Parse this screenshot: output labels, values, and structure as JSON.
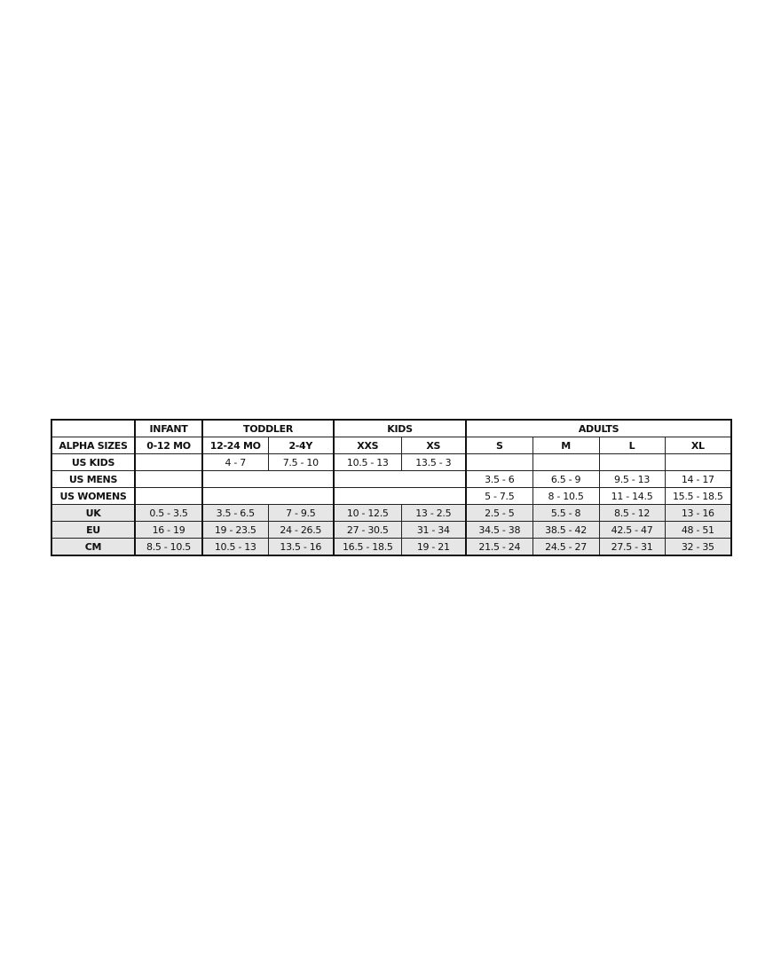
{
  "table": {
    "group_header": {
      "label": "",
      "groups": [
        {
          "text": "INFANT",
          "span": 1
        },
        {
          "text": "TODDLER",
          "span": 2
        },
        {
          "text": "KIDS",
          "span": 2
        },
        {
          "text": "ADULTS",
          "span": 4
        }
      ]
    },
    "rows": [
      {
        "label": "ALPHA SIZES",
        "header": true,
        "grey": false,
        "cells": [
          {
            "text": "0-12 MO"
          },
          {
            "text": "12-24 MO"
          },
          {
            "text": "2-4Y"
          },
          {
            "text": "XXS"
          },
          {
            "text": "XS"
          },
          {
            "text": "S"
          },
          {
            "text": "M"
          },
          {
            "text": "L"
          },
          {
            "text": "XL"
          }
        ]
      },
      {
        "label": "US KIDS",
        "grey": false,
        "cells": [
          {
            "text": ""
          },
          {
            "text": "4 - 7"
          },
          {
            "text": "7.5 - 10"
          },
          {
            "text": "10.5 - 13"
          },
          {
            "text": "13.5 - 3"
          },
          {
            "text": ""
          },
          {
            "text": ""
          },
          {
            "text": ""
          },
          {
            "text": ""
          }
        ]
      },
      {
        "label": "US MENS",
        "grey": false,
        "cells": [
          {
            "text": ""
          },
          {
            "text": "",
            "span": 2
          },
          {
            "text": "",
            "span": 2
          },
          {
            "text": "3.5 - 6"
          },
          {
            "text": "6.5 - 9"
          },
          {
            "text": "9.5 - 13"
          },
          {
            "text": "14 - 17"
          }
        ]
      },
      {
        "label": "US WOMENS",
        "grey": false,
        "cells": [
          {
            "text": ""
          },
          {
            "text": "",
            "span": 2
          },
          {
            "text": "",
            "span": 2
          },
          {
            "text": "5 - 7.5"
          },
          {
            "text": "8 - 10.5"
          },
          {
            "text": "11 - 14.5"
          },
          {
            "text": "15.5 - 18.5"
          }
        ]
      },
      {
        "label": "UK",
        "grey": true,
        "cells": [
          {
            "text": "0.5 - 3.5"
          },
          {
            "text": "3.5 - 6.5"
          },
          {
            "text": "7 - 9.5"
          },
          {
            "text": "10 - 12.5"
          },
          {
            "text": "13 - 2.5"
          },
          {
            "text": "2.5 - 5"
          },
          {
            "text": "5.5 - 8"
          },
          {
            "text": "8.5 - 12"
          },
          {
            "text": "13 - 16"
          }
        ]
      },
      {
        "label": "EU",
        "grey": true,
        "cells": [
          {
            "text": "16 - 19"
          },
          {
            "text": "19 - 23.5"
          },
          {
            "text": "24 - 26.5"
          },
          {
            "text": "27 - 30.5"
          },
          {
            "text": "31 - 34"
          },
          {
            "text": "34.5 - 38"
          },
          {
            "text": "38.5 - 42"
          },
          {
            "text": "42.5 - 47"
          },
          {
            "text": "48 - 51"
          }
        ]
      },
      {
        "label": "CM",
        "grey": true,
        "cells": [
          {
            "text": "8.5 - 10.5"
          },
          {
            "text": "10.5 - 13"
          },
          {
            "text": "13.5 - 16"
          },
          {
            "text": "16.5 - 18.5"
          },
          {
            "text": "19 - 21"
          },
          {
            "text": "21.5 - 24"
          },
          {
            "text": "24.5 - 27"
          },
          {
            "text": "27.5 - 31"
          },
          {
            "text": "32 - 35"
          }
        ]
      }
    ]
  }
}
